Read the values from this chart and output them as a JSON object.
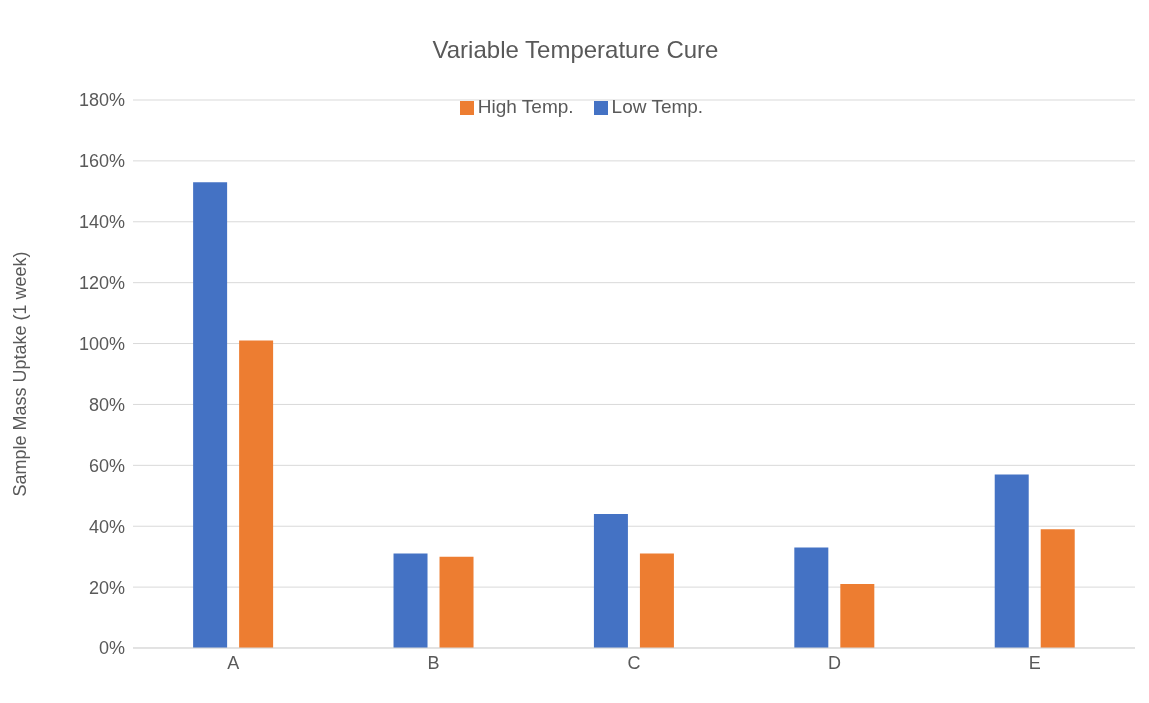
{
  "chart_data": {
    "type": "bar",
    "title": "Variable Temperature Cure",
    "ylabel": "Sample Mass Uptake (1 week)",
    "categories": [
      "A",
      "B",
      "C",
      "D",
      "E"
    ],
    "series": [
      {
        "name": "Low Temp.",
        "color": "#4472c4",
        "values": [
          153,
          31,
          44,
          33,
          57
        ]
      },
      {
        "name": "High Temp.",
        "color": "#ed7d31",
        "values": [
          101,
          30,
          31,
          21,
          39
        ]
      }
    ],
    "ylim": [
      0,
      180
    ],
    "yticks": [
      {
        "value": 0,
        "label": "0%"
      },
      {
        "value": 20,
        "label": "20%"
      },
      {
        "value": 40,
        "label": "40%"
      },
      {
        "value": 60,
        "label": "60%"
      },
      {
        "value": 80,
        "label": "80%"
      },
      {
        "value": 100,
        "label": "100%"
      },
      {
        "value": 120,
        "label": "120%"
      },
      {
        "value": 140,
        "label": "140%"
      },
      {
        "value": 160,
        "label": "160%"
      },
      {
        "value": 180,
        "label": "180%"
      }
    ],
    "grid": "y",
    "legend": "top"
  }
}
